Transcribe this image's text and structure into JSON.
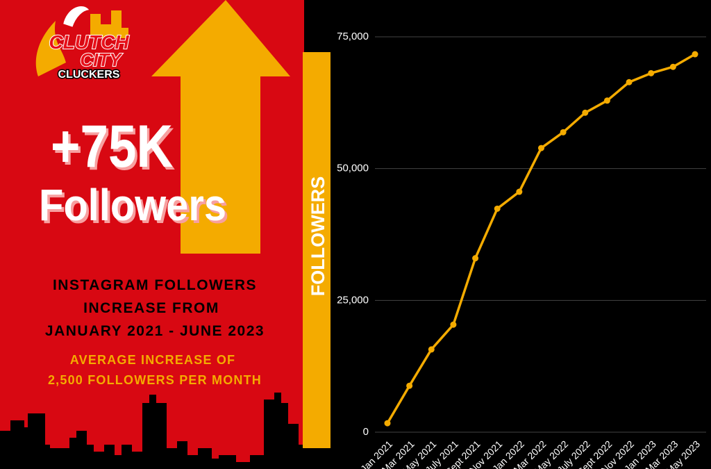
{
  "panel": {
    "logo": {
      "line1": "CLUTCH",
      "line2": "CITY",
      "line3": "CLUCKERS"
    },
    "headline": "+75K",
    "subheadline": "Followers",
    "description": [
      "INSTAGRAM FOLLOWERS",
      "INCREASE FROM",
      "JANUARY 2021 - JUNE 2023"
    ],
    "note": [
      "AVERAGE INCREASE OF",
      "2,500 FOLLOWERS PER MONTH"
    ]
  },
  "chart_data": {
    "type": "line",
    "y_label": "FOLLOWERS",
    "categories": [
      "Jan 2021",
      "Mar 2021",
      "May 2021",
      "July 2021",
      "Sept 2021",
      "Nov 2021",
      "Jan 2022",
      "Mar 2022",
      "May 2022",
      "July 2022",
      "Sept 2022",
      "Nov 2022",
      "Jan 2023",
      "Mar 2023",
      "May 2023"
    ],
    "series": [
      {
        "name": "Followers",
        "color": "#f4ab00",
        "values": [
          1700,
          8800,
          15700,
          20400,
          33000,
          42400,
          45600,
          53900,
          56900,
          60600,
          62900,
          66400,
          68100,
          69300,
          71700
        ]
      }
    ],
    "ylim": [
      0,
      75000
    ],
    "yticks": [
      0,
      {
        "value": 25000,
        "label": "25,000"
      },
      {
        "value": 50000,
        "label": "50,000"
      },
      {
        "value": 75000,
        "label": "75,000"
      }
    ],
    "grid": true
  }
}
